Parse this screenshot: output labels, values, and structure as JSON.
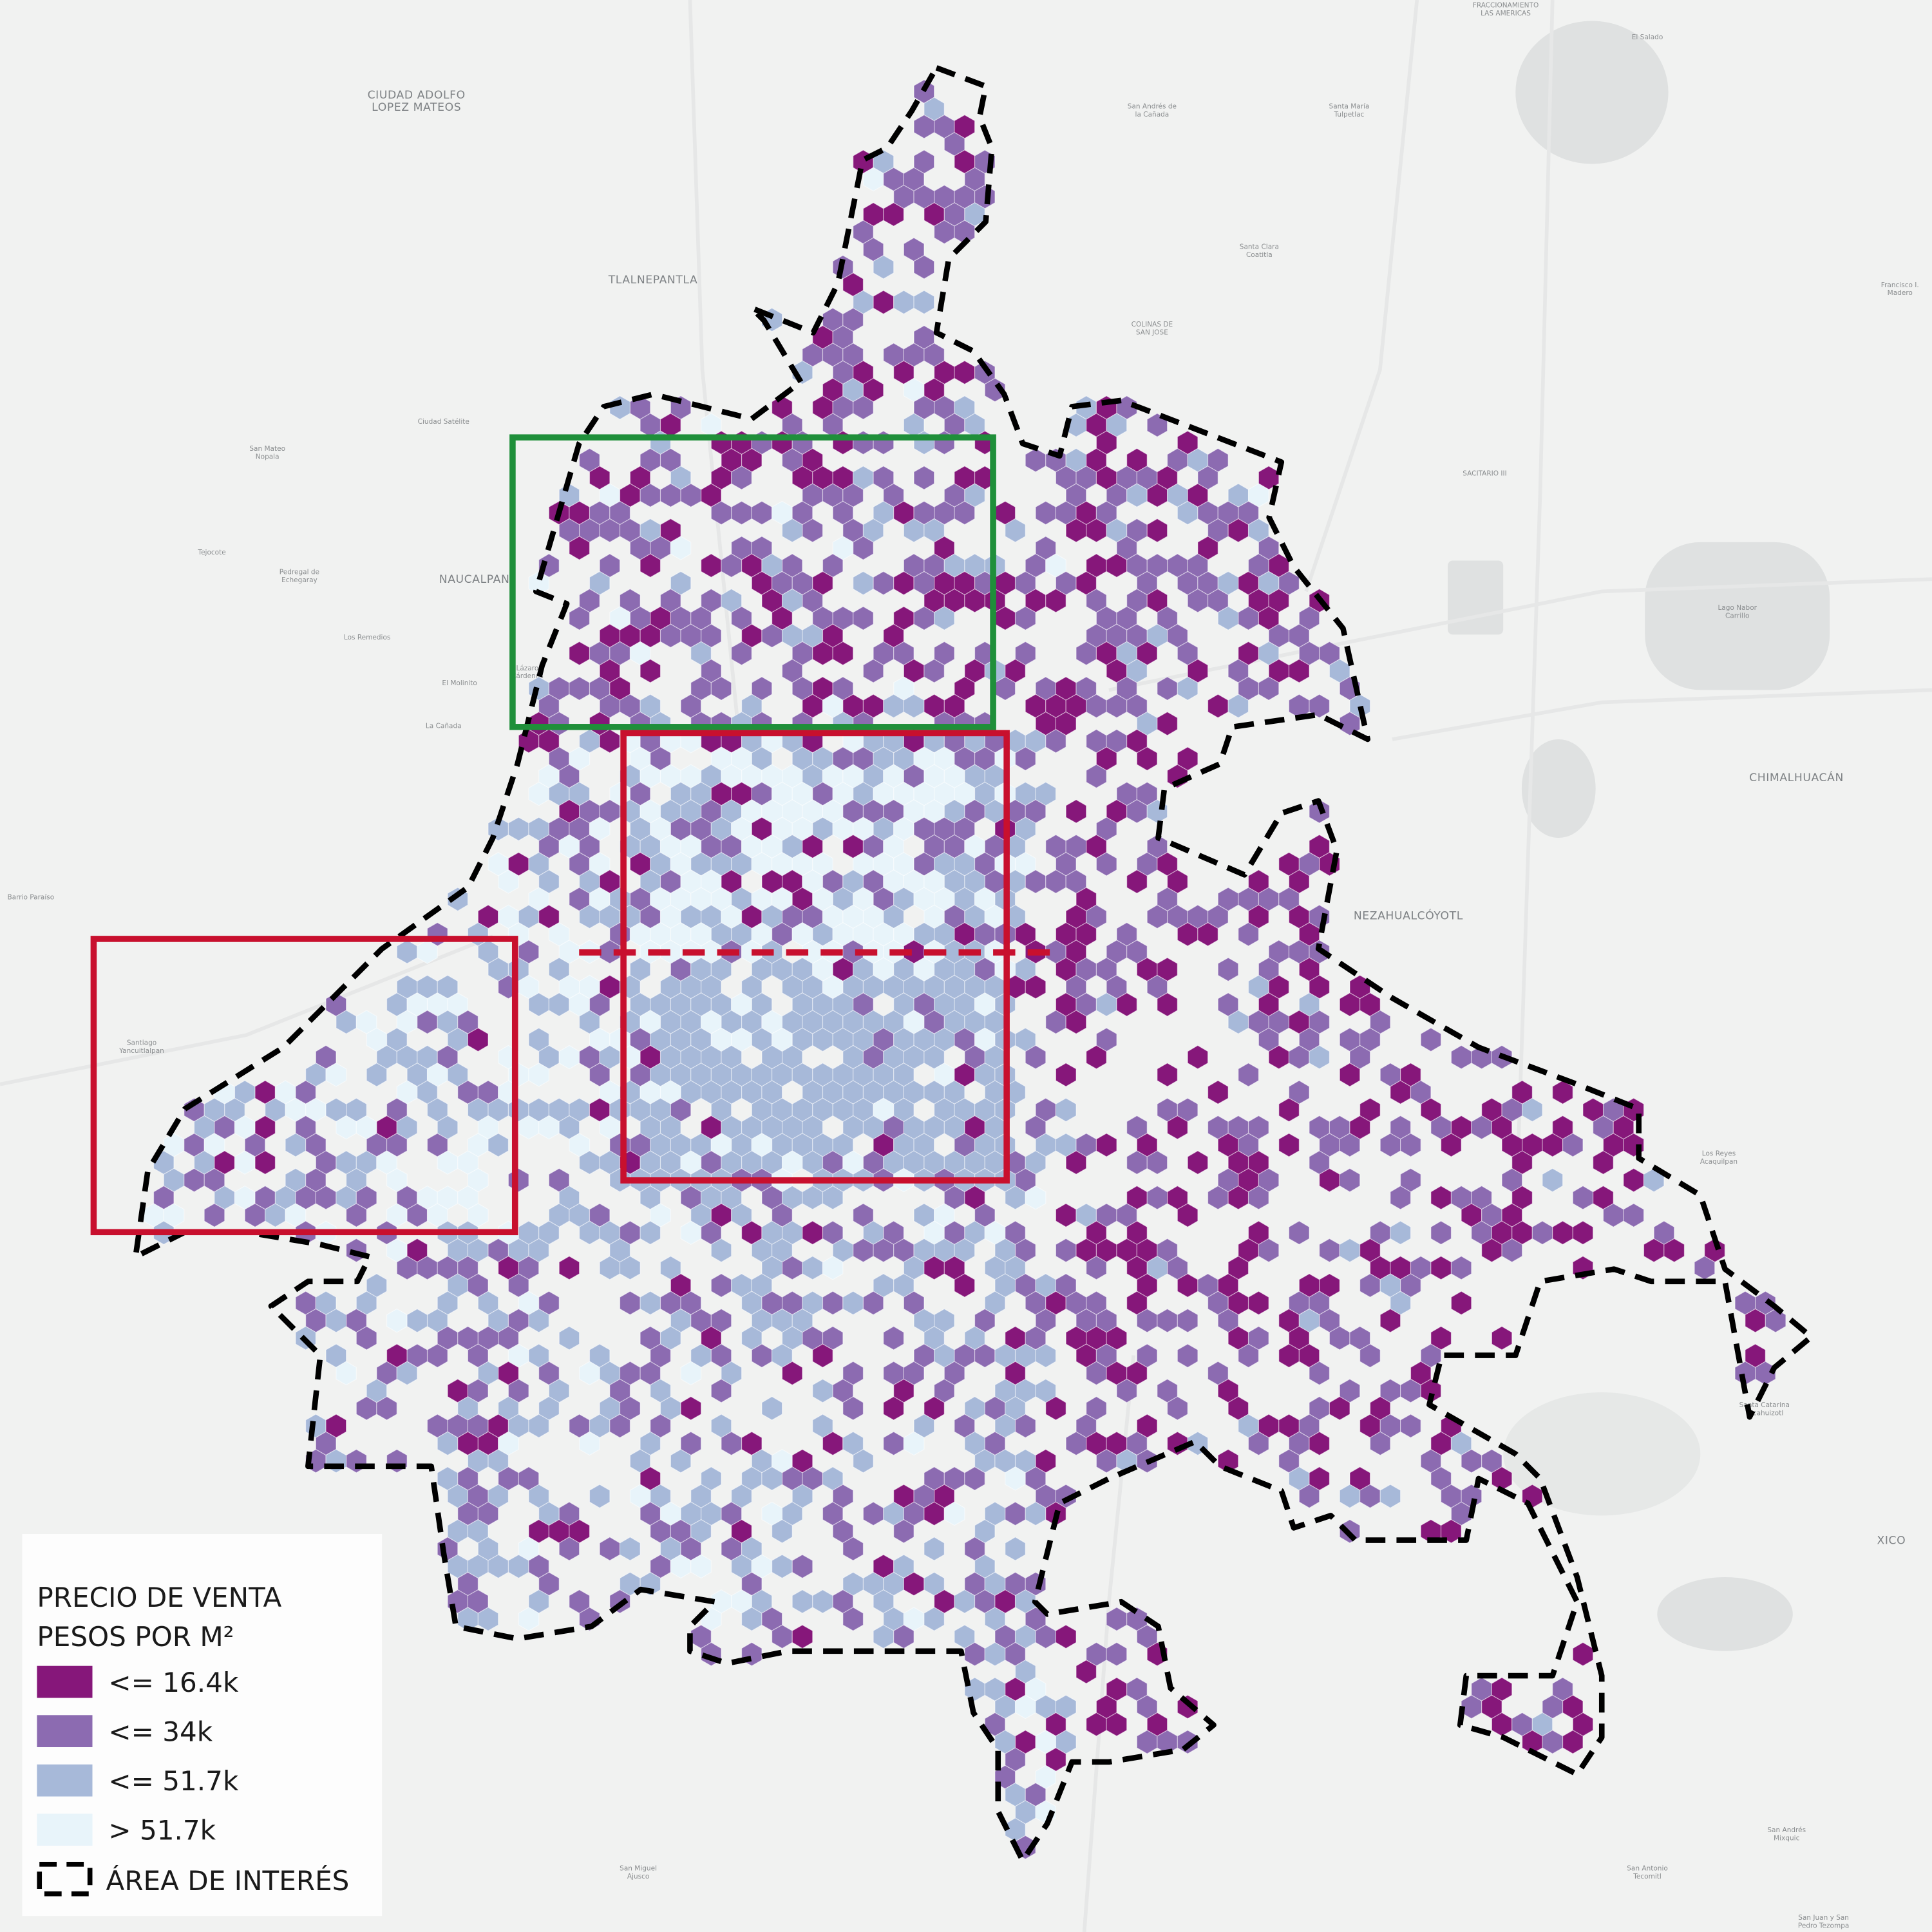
{
  "legend": {
    "title": [
      "PRECIO DE VENTA",
      "PESOS POR M²"
    ],
    "classes": [
      {
        "label": "<= 16.4k",
        "color": "#86177a"
      },
      {
        "label": "<= 34k",
        "color": "#8c6bb1"
      },
      {
        "label": "<= 51.7k",
        "color": "#a7b9d9"
      },
      {
        "label": "> 51.7k",
        "color": "#e8f4fa"
      }
    ],
    "boundary_label": "ÁREA DE INTERÉS"
  },
  "place_labels": [
    [
      "FRACCIONAMIENTO",
      "LAS AMERICAS"
    ],
    [
      "El Salado"
    ],
    [
      "CIUDAD ADOLFO",
      "LOPEZ MATEOS"
    ],
    [
      "San Andrés de",
      "la Cañada"
    ],
    [
      "Santa María",
      "Tulpetlac"
    ],
    [
      "TLALNEPANTLA"
    ],
    [
      "Santa Clara",
      "Coatitla"
    ],
    [
      "COLINAS DE",
      "SAN JOSE"
    ],
    [
      "Francisco I.",
      "Madero"
    ],
    [
      "Ciudad Satélite"
    ],
    [
      "San Mateo",
      "Nopala"
    ],
    [
      "SACITARIO III"
    ],
    [
      "Tejocote"
    ],
    [
      "Pedregal de",
      "Echegaray"
    ],
    [
      "NAUCALPAN"
    ],
    [
      "Los Remedios"
    ],
    [
      "El Molinito"
    ],
    [
      "La Cañada"
    ],
    [
      "Lázaro",
      "Cárdenas"
    ],
    [
      "Lago Nabor",
      "Carrillo"
    ],
    [
      "CHIMALHUACÁN"
    ],
    [
      "Barrio Paraíso"
    ],
    [
      "NEZAHUALCÓYOTL"
    ],
    [
      "Santiago",
      "Yancuitlalpan"
    ],
    [
      "Los Reyes",
      "Acaquilpan"
    ],
    [
      "Santa Catarina",
      "Yecahuizotl"
    ],
    [
      "XICO"
    ],
    [
      "San Andrés",
      "Mixquic"
    ],
    [
      "San Miguel",
      "Ajusco"
    ],
    [
      "San Antonio",
      "Tecomitl"
    ],
    [
      "San Juan y San",
      "Pedro Tezompa"
    ]
  ]
}
